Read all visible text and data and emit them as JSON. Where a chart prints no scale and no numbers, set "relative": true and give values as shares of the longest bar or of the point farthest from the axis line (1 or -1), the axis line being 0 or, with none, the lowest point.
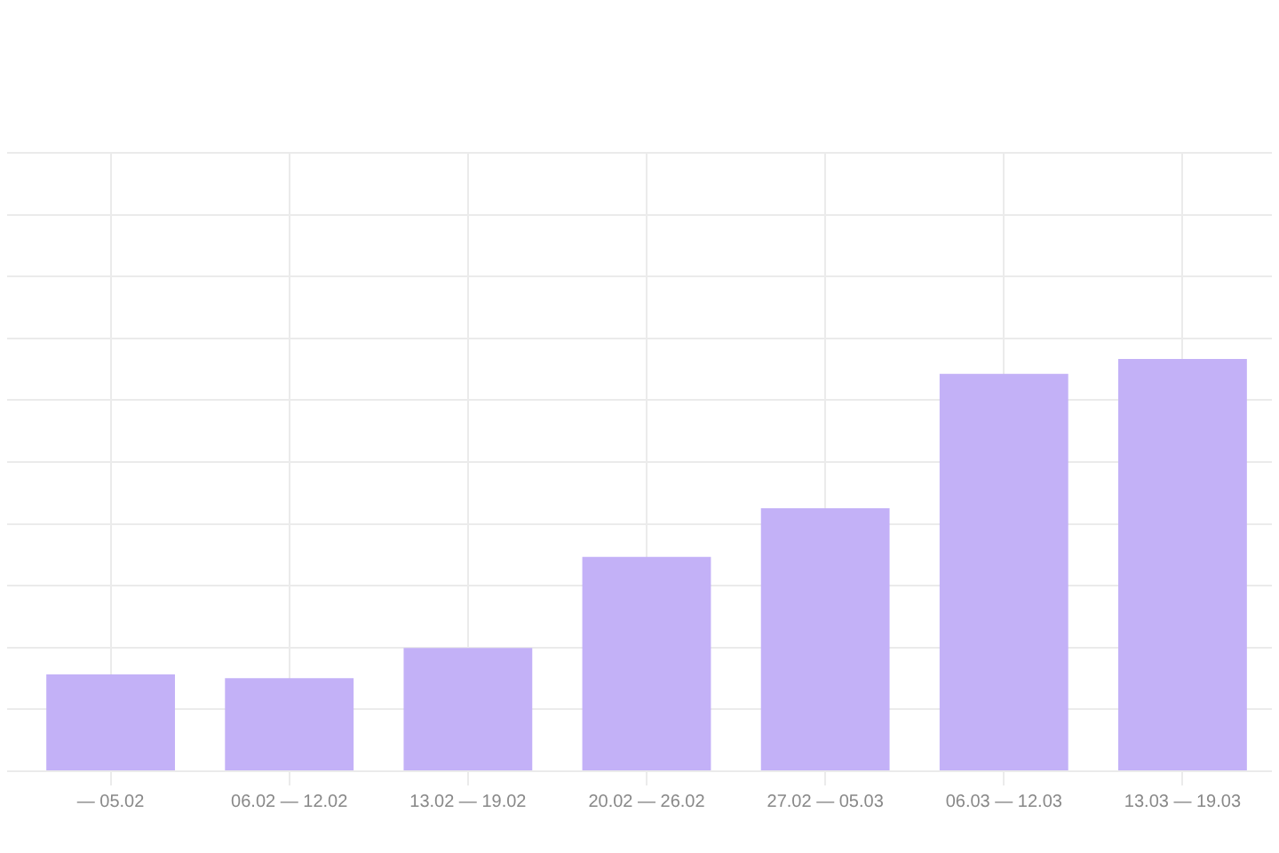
{
  "chart_data": {
    "type": "bar",
    "relative": true,
    "categories": [
      "— 05.02",
      "06.02 — 12.02",
      "13.02 — 19.02",
      "20.02 — 26.02",
      "27.02 — 05.03",
      "06.03 — 12.03",
      "13.03 — 19.03"
    ],
    "values": [
      0.235,
      0.226,
      0.299,
      0.52,
      0.638,
      0.964,
      1
    ],
    "color": "#c3b1f7",
    "grid": true
  }
}
